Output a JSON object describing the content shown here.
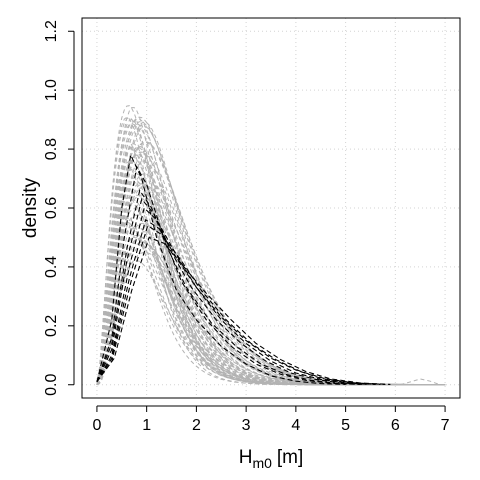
{
  "chart_data": {
    "type": "line",
    "title": "",
    "xlabel": "H",
    "xlabel_subscript": "m0",
    "xlabel_unit": "[m]",
    "ylabel": "density",
    "xlim": [
      -0.3,
      7.3
    ],
    "ylim": [
      -0.045,
      1.245
    ],
    "x_ticks": [
      0,
      1,
      2,
      3,
      4,
      5,
      6,
      7
    ],
    "y_ticks": [
      0.0,
      0.2,
      0.4,
      0.6,
      0.8,
      1.0,
      1.2
    ],
    "y_tick_labels": [
      "0.0",
      "0.2",
      "0.4",
      "0.6",
      "0.8",
      "1.0",
      "1.2"
    ],
    "grid": true,
    "legend": "none",
    "colors": {
      "ensemble": "#b3b3b3",
      "highlight": "#000000",
      "grid": "#d3d3d3"
    },
    "ensemble_count": 60,
    "ensemble_mode_range": [
      0.6,
      1.0
    ],
    "ensemble_peak_range": [
      0.42,
      0.95
    ],
    "series": [
      {
        "style": "black-dashed",
        "mode": 0.68,
        "peak": 0.78,
        "points": [
          [
            0,
            0.01
          ],
          [
            0.3,
            0.22
          ],
          [
            0.5,
            0.6
          ],
          [
            0.68,
            0.78
          ],
          [
            0.9,
            0.7
          ],
          [
            1.2,
            0.5
          ],
          [
            1.6,
            0.32
          ],
          [
            2.0,
            0.22
          ],
          [
            2.5,
            0.13
          ],
          [
            3.0,
            0.07
          ],
          [
            3.5,
            0.03
          ],
          [
            4.0,
            0.012
          ],
          [
            4.5,
            0.004
          ],
          [
            5.0,
            0.001
          ]
        ]
      },
      {
        "style": "black-dashed",
        "mode": 0.8,
        "peak": 0.74,
        "points": [
          [
            0,
            0.01
          ],
          [
            0.3,
            0.16
          ],
          [
            0.55,
            0.5
          ],
          [
            0.8,
            0.74
          ],
          [
            1.0,
            0.68
          ],
          [
            1.3,
            0.52
          ],
          [
            1.7,
            0.35
          ],
          [
            2.2,
            0.22
          ],
          [
            2.7,
            0.13
          ],
          [
            3.2,
            0.07
          ],
          [
            3.7,
            0.035
          ],
          [
            4.2,
            0.015
          ],
          [
            4.7,
            0.005
          ],
          [
            5.3,
            0.001
          ]
        ]
      },
      {
        "style": "black-dashed",
        "mode": 0.86,
        "peak": 0.66,
        "points": [
          [
            0,
            0.01
          ],
          [
            0.3,
            0.14
          ],
          [
            0.6,
            0.46
          ],
          [
            0.86,
            0.66
          ],
          [
            1.1,
            0.6
          ],
          [
            1.4,
            0.47
          ],
          [
            1.8,
            0.33
          ],
          [
            2.3,
            0.21
          ],
          [
            2.8,
            0.13
          ],
          [
            3.3,
            0.07
          ],
          [
            3.8,
            0.035
          ],
          [
            4.3,
            0.015
          ],
          [
            4.8,
            0.005
          ],
          [
            5.4,
            0.001
          ]
        ]
      },
      {
        "style": "black-dashed",
        "mode": 0.9,
        "peak": 0.63,
        "points": [
          [
            0,
            0.01
          ],
          [
            0.3,
            0.12
          ],
          [
            0.6,
            0.42
          ],
          [
            0.9,
            0.63
          ],
          [
            1.15,
            0.58
          ],
          [
            1.5,
            0.45
          ],
          [
            1.9,
            0.33
          ],
          [
            2.4,
            0.22
          ],
          [
            2.9,
            0.14
          ],
          [
            3.4,
            0.08
          ],
          [
            3.9,
            0.04
          ],
          [
            4.4,
            0.018
          ],
          [
            4.9,
            0.006
          ],
          [
            5.5,
            0.001
          ]
        ]
      },
      {
        "style": "black-dashed",
        "mode": 0.95,
        "peak": 0.6,
        "points": [
          [
            0,
            0.01
          ],
          [
            0.3,
            0.1
          ],
          [
            0.65,
            0.4
          ],
          [
            0.95,
            0.6
          ],
          [
            1.2,
            0.56
          ],
          [
            1.6,
            0.44
          ],
          [
            2.0,
            0.33
          ],
          [
            2.5,
            0.22
          ],
          [
            3.0,
            0.14
          ],
          [
            3.5,
            0.08
          ],
          [
            4.0,
            0.04
          ],
          [
            4.5,
            0.018
          ],
          [
            5.0,
            0.006
          ],
          [
            5.6,
            0.001
          ]
        ]
      },
      {
        "style": "black-dashed",
        "mode": 0.98,
        "peak": 0.56,
        "points": [
          [
            0,
            0.01
          ],
          [
            0.3,
            0.09
          ],
          [
            0.65,
            0.36
          ],
          [
            0.98,
            0.56
          ],
          [
            1.25,
            0.53
          ],
          [
            1.6,
            0.43
          ],
          [
            2.0,
            0.33
          ],
          [
            2.5,
            0.23
          ],
          [
            3.0,
            0.15
          ],
          [
            3.5,
            0.09
          ],
          [
            4.0,
            0.05
          ],
          [
            4.5,
            0.022
          ],
          [
            5.0,
            0.008
          ],
          [
            5.7,
            0.001
          ]
        ]
      },
      {
        "style": "black-dashed",
        "mode": 1.02,
        "peak": 0.54,
        "points": [
          [
            0,
            0.01
          ],
          [
            0.3,
            0.08
          ],
          [
            0.7,
            0.36
          ],
          [
            1.02,
            0.54
          ],
          [
            1.3,
            0.51
          ],
          [
            1.7,
            0.42
          ],
          [
            2.1,
            0.32
          ],
          [
            2.6,
            0.22
          ],
          [
            3.1,
            0.14
          ],
          [
            3.6,
            0.085
          ],
          [
            4.1,
            0.045
          ],
          [
            4.6,
            0.02
          ],
          [
            5.2,
            0.006
          ],
          [
            5.8,
            0.001
          ]
        ]
      },
      {
        "style": "black-dashed",
        "mode": 1.05,
        "peak": 0.5,
        "points": [
          [
            0,
            0.01
          ],
          [
            0.35,
            0.09
          ],
          [
            0.7,
            0.32
          ],
          [
            1.05,
            0.5
          ],
          [
            1.35,
            0.48
          ],
          [
            1.75,
            0.4
          ],
          [
            2.2,
            0.31
          ],
          [
            2.7,
            0.22
          ],
          [
            3.2,
            0.14
          ],
          [
            3.7,
            0.085
          ],
          [
            4.2,
            0.045
          ],
          [
            4.7,
            0.02
          ],
          [
            5.3,
            0.006
          ],
          [
            5.9,
            0.001
          ]
        ]
      }
    ]
  }
}
